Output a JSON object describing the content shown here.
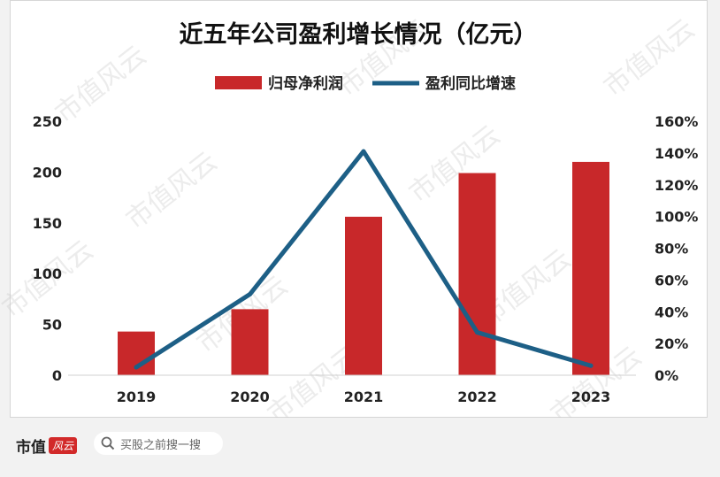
{
  "chart_data": {
    "type": "bar+line",
    "title": "近五年公司盈利增长情况（亿元）",
    "categories": [
      "2019",
      "2020",
      "2021",
      "2022",
      "2023"
    ],
    "series": [
      {
        "name": "归母净利润",
        "type": "bar",
        "axis": "left",
        "color": "#c8282a",
        "values": [
          43,
          65,
          156,
          199,
          210
        ]
      },
      {
        "name": "盈利同比增速",
        "type": "line",
        "axis": "right",
        "color": "#1d5f86",
        "values": [
          5,
          51,
          141,
          27,
          6
        ]
      }
    ],
    "y_left": {
      "min": 0,
      "max": 250,
      "ticks": [
        "0",
        "50",
        "100",
        "150",
        "200",
        "250"
      ]
    },
    "y_right": {
      "min": 0,
      "max": 160,
      "ticks": [
        "0%",
        "20%",
        "40%",
        "60%",
        "80%",
        "100%",
        "120%",
        "140%",
        "160%"
      ]
    },
    "grid": false,
    "legend": "top-center"
  },
  "watermark": "市值风云",
  "footer": {
    "brand": "市值",
    "logo": "风云",
    "search_placeholder": "买股之前搜一搜",
    "search_icon": "search-icon"
  }
}
